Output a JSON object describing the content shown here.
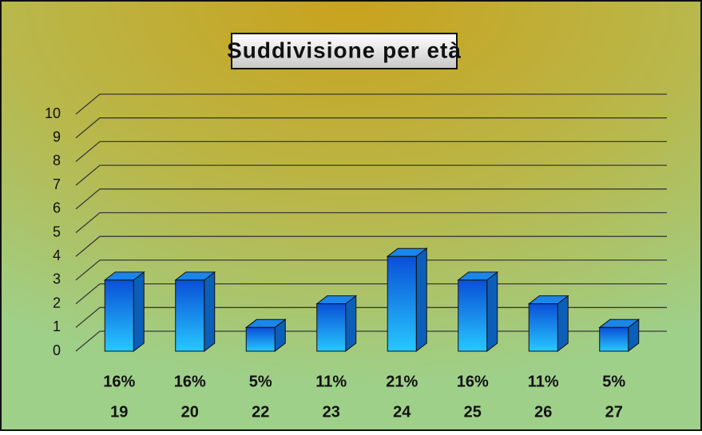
{
  "chart_data": {
    "type": "bar3d",
    "title": "Suddivisione per età",
    "categories": [
      "19",
      "20",
      "22",
      "23",
      "24",
      "25",
      "26",
      "27"
    ],
    "shares": [
      "16%",
      "16%",
      "5%",
      "11%",
      "21%",
      "16%",
      "11%",
      "5%"
    ],
    "values": [
      3,
      3,
      1,
      2,
      4,
      3,
      2,
      1
    ],
    "ylim": [
      0,
      10
    ],
    "yticks": [
      0,
      1,
      2,
      3,
      4,
      5,
      6,
      7,
      8,
      9,
      10
    ],
    "grid": true
  }
}
